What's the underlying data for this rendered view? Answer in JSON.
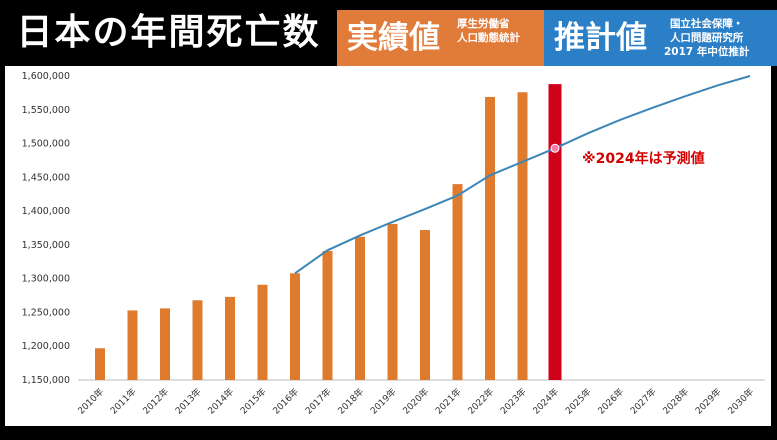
{
  "header": {
    "title": "日本の年間死亡数",
    "actual": {
      "label": "実績値",
      "source_line1": "厚生労働省",
      "source_line2": "人口動態統計"
    },
    "estimate": {
      "label": "推計値",
      "source_line1": "国立社会保障・",
      "source_line2": "人口問題研究所",
      "source_line3": "2017 年中位推計"
    }
  },
  "colors": {
    "bar": "#e07b2d",
    "bar_highlight": "#d0021b",
    "line": "#3d86b8",
    "orange_header": "#e07b3a",
    "blue_header": "#2a7fc7"
  },
  "chart_data": {
    "type": "bar",
    "categories": [
      "2010年",
      "2011年",
      "2012年",
      "2013年",
      "2014年",
      "2015年",
      "2016年",
      "2017年",
      "2018年",
      "2019年",
      "2020年",
      "2021年",
      "2022年",
      "2023年",
      "2024年",
      "2025年",
      "2026年",
      "2027年",
      "2028年",
      "2029年",
      "2030年"
    ],
    "series": [
      {
        "kind": "bar",
        "values": [
          1197000,
          1253000,
          1256000,
          1268000,
          1273000,
          1291000,
          1308000,
          1341000,
          1362000,
          1381000,
          1372000,
          1440000,
          1569000,
          1576000,
          1588000,
          null,
          null,
          null,
          null,
          null,
          null
        ],
        "highlight_index": 14
      },
      {
        "kind": "line",
        "values": [
          null,
          null,
          null,
          null,
          null,
          null,
          1308000,
          1342000,
          1364000,
          1384000,
          1403000,
          1423000,
          1453000,
          1473000,
          1493000,
          1515000,
          1535000,
          1553000,
          1570000,
          1586000,
          1600000
        ],
        "marker_index": 14
      }
    ],
    "ylim": [
      1150000,
      1600000
    ],
    "yticks": [
      "1,150,000",
      "1,200,000",
      "1,250,000",
      "1,300,000",
      "1,350,000",
      "1,400,000",
      "1,450,000",
      "1,500,000",
      "1,550,000",
      "1,600,000"
    ],
    "annotation": "※2024年は予測値",
    "grid": false
  }
}
